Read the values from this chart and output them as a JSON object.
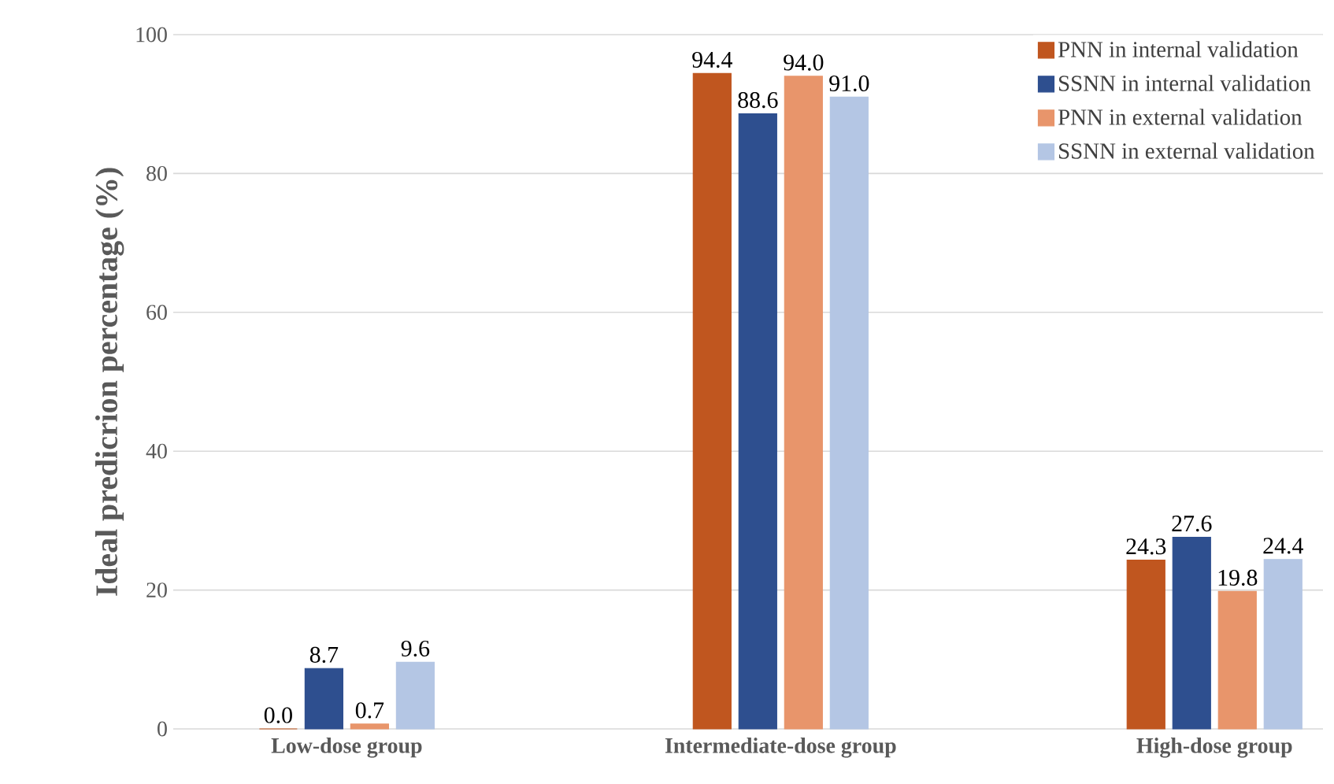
{
  "chart_data": {
    "type": "bar",
    "ylabel": "Ideal predicrion percentage (%)",
    "categories": [
      "Low-dose group",
      "Intermediate-dose group",
      "High-dose group"
    ],
    "series": [
      {
        "name": "PNN in internal validation",
        "color": "#c0561f",
        "values": [
          0.0,
          94.4,
          24.3
        ],
        "value_labels": [
          "0.0",
          "94.4",
          "24.3"
        ]
      },
      {
        "name": "SSNN in internal validation",
        "color": "#2e4f8f",
        "values": [
          8.7,
          88.6,
          27.6
        ],
        "value_labels": [
          "8.7",
          "88.6",
          "27.6"
        ]
      },
      {
        "name": "PNN in external validation",
        "color": "#e8956b",
        "values": [
          0.7,
          94.0,
          19.8
        ],
        "value_labels": [
          "0.7",
          "94.0",
          "19.8"
        ]
      },
      {
        "name": "SSNN in external validation",
        "color": "#b4c6e4",
        "values": [
          9.6,
          91.0,
          24.4
        ],
        "value_labels": [
          "9.6",
          "91.0",
          "24.4"
        ]
      }
    ],
    "ylim": [
      0,
      100
    ],
    "yticks": [
      0,
      20,
      40,
      60,
      80,
      100
    ],
    "grid": "y",
    "legend": "top right"
  }
}
